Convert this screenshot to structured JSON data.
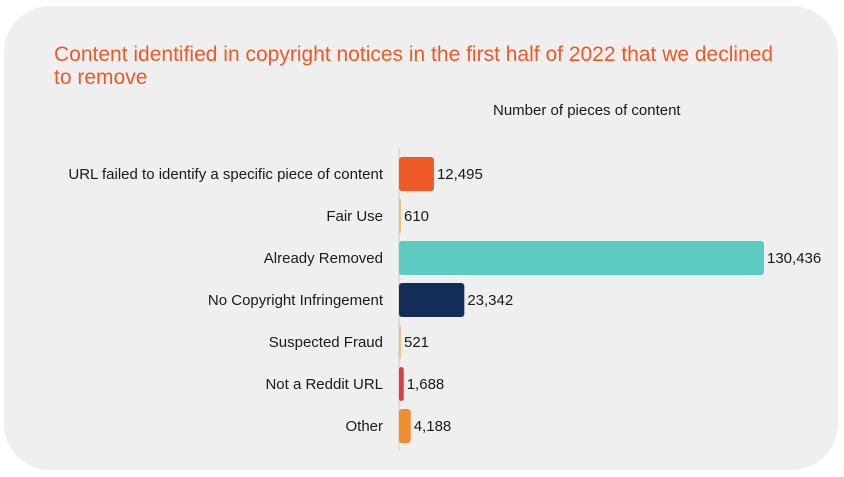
{
  "chart_data": {
    "type": "bar",
    "orientation": "horizontal",
    "title": "Content identified in copyright notices in the first half of 2022 that we declined to remove",
    "xlabel": "Number of pieces of content",
    "ylabel": "",
    "xlim": [
      0,
      130436
    ],
    "grid": false,
    "legend": "none",
    "categories": [
      "URL failed to identify a specific piece of content",
      "Fair Use",
      "Already Removed",
      "No Copyright Infringement",
      "Suspected Fraud",
      "Not a Reddit URL",
      "Other"
    ],
    "values": [
      12495,
      610,
      130436,
      23342,
      521,
      1688,
      4188
    ],
    "value_labels": [
      "12,495",
      "610",
      "130,436",
      "23,342",
      "521",
      "1,688",
      "4,188"
    ],
    "colors": [
      "#ee5a28",
      "#f0c27a",
      "#5ccbc1",
      "#142d58",
      "#f2c27e",
      "#e03c45",
      "#f28c2e"
    ]
  }
}
